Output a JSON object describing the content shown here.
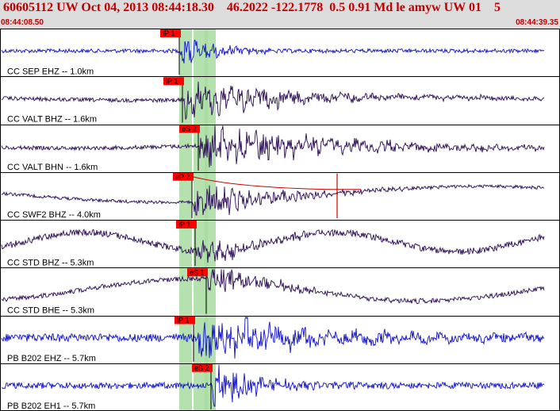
{
  "header": {
    "title": "60605112 UW Oct 04, 2013 08:44:18.30    46.2022 -122.1778  0.5 0.91 Md le amyw UW 01    5",
    "start_time": "08:44:08.50",
    "end_time": "08:44:39.35"
  },
  "colors": {
    "header_bg": "#dcdcdc",
    "header_text": "#c00000",
    "blue_trace": "#1010cc",
    "purple_trace": "#2a0a55",
    "pick_flag": "#ff0000",
    "window_band": "#a8dca0",
    "theoretical_line": "#cc0000"
  },
  "traces": [
    {
      "label": "CC SEP EHZ -- 1.0km",
      "color": "blue",
      "pick": "iP 1",
      "theoretical": "P"
    },
    {
      "label": "CC VALT BHZ -- 1.6km",
      "color": "purple",
      "pick": "iP 1",
      "theoretical": "P"
    },
    {
      "label": "CC VALT BHN -- 1.6km",
      "color": "purple",
      "pick": "eS 2",
      "theoretical": "S"
    },
    {
      "label": "CC SWF2 BHZ -- 4.0km",
      "color": "purple",
      "pick": "eP 2",
      "theoretical": "P"
    },
    {
      "label": "CC STD BHZ -- 5.3km",
      "color": "purple",
      "pick": "iP 1",
      "theoretical": "P"
    },
    {
      "label": "CC STD BHE -- 5.3km",
      "color": "purple",
      "pick": "eS 1",
      "theoretical": "S"
    },
    {
      "label": "PB B202 EHZ -- 5.7km",
      "color": "blue",
      "pick": "iP 1",
      "theoretical": "P"
    },
    {
      "label": "PB B202 EH1 -- 5.7km",
      "color": "blue",
      "pick": "eS 2",
      "theoretical": "S"
    }
  ]
}
